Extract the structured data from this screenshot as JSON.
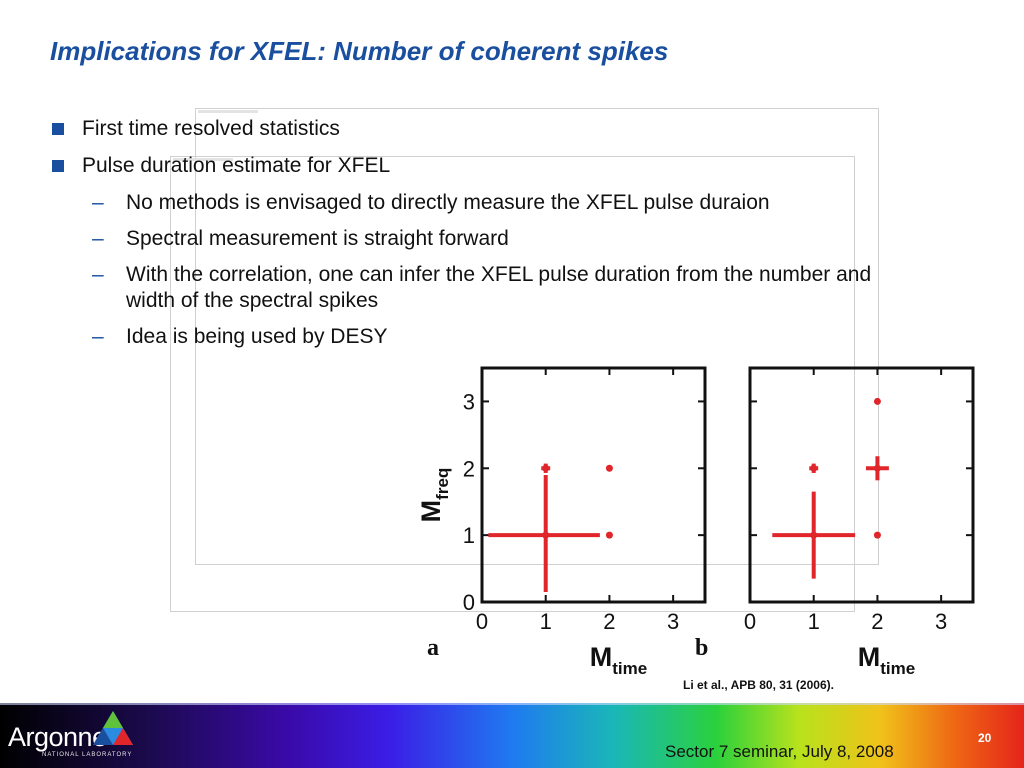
{
  "slide": {
    "title": "Implications for XFEL: Number of coherent spikes",
    "bullets": [
      {
        "text": "First time resolved statistics"
      },
      {
        "text": "Pulse duration estimate for XFEL",
        "sub": [
          "No methods is envisaged to directly measure the XFEL pulse duraion",
          "Spectral measurement is straight forward",
          "With the correlation, one can infer the XFEL pulse duration from the number and width of the spectral spikes",
          "Idea is being used by DESY"
        ]
      }
    ],
    "citation": "Li et al., APB 80, 31 (2006)."
  },
  "chart_data": [
    {
      "type": "scatter",
      "panel_label": "a",
      "xlabel": "M",
      "xlabel_sub": "time",
      "ylabel": "M",
      "ylabel_sub": "freq",
      "xlim": [
        0,
        3.5
      ],
      "ylim": [
        0,
        3.5
      ],
      "xticks": [
        "0",
        "1",
        "2",
        "3"
      ],
      "yticks": [
        "0",
        "1",
        "2",
        "3"
      ],
      "points": [
        {
          "x": 1,
          "y": 1,
          "xerr_minus": 0.9,
          "xerr_plus": 0.85,
          "yerr_minus": 0.85,
          "yerr_plus": 0.9
        },
        {
          "x": 1,
          "y": 2,
          "xerr_minus": 0.07,
          "xerr_plus": 0.07,
          "yerr_minus": 0.07,
          "yerr_plus": 0.07
        },
        {
          "x": 2,
          "y": 1,
          "xerr_minus": 0,
          "xerr_plus": 0,
          "yerr_minus": 0,
          "yerr_plus": 0
        },
        {
          "x": 2,
          "y": 2,
          "xerr_minus": 0,
          "xerr_plus": 0,
          "yerr_minus": 0,
          "yerr_plus": 0
        }
      ],
      "color": "#e0262b"
    },
    {
      "type": "scatter",
      "panel_label": "b",
      "xlabel": "M",
      "xlabel_sub": "time",
      "ylabel": "",
      "ylabel_sub": "",
      "xlim": [
        0,
        3.5
      ],
      "ylim": [
        0,
        3.5
      ],
      "xticks": [
        "0",
        "1",
        "2",
        "3"
      ],
      "yticks": [],
      "points": [
        {
          "x": 1,
          "y": 1,
          "xerr_minus": 0.65,
          "xerr_plus": 0.65,
          "yerr_minus": 0.65,
          "yerr_plus": 0.65
        },
        {
          "x": 1,
          "y": 2,
          "xerr_minus": 0.07,
          "xerr_plus": 0.07,
          "yerr_minus": 0.07,
          "yerr_plus": 0.07
        },
        {
          "x": 2,
          "y": 1,
          "xerr_minus": 0,
          "xerr_plus": 0,
          "yerr_minus": 0,
          "yerr_plus": 0
        },
        {
          "x": 2,
          "y": 2,
          "xerr_minus": 0.18,
          "xerr_plus": 0.18,
          "yerr_minus": 0.18,
          "yerr_plus": 0.18
        },
        {
          "x": 2,
          "y": 3,
          "xerr_minus": 0,
          "xerr_plus": 0,
          "yerr_minus": 0,
          "yerr_plus": 0
        }
      ],
      "color": "#e0262b"
    }
  ],
  "footer": {
    "logo_text": "Argonne",
    "logo_subtext": "NATIONAL LABORATORY",
    "page_number": "20",
    "event": "Sector 7 seminar, July 8, 2008"
  }
}
